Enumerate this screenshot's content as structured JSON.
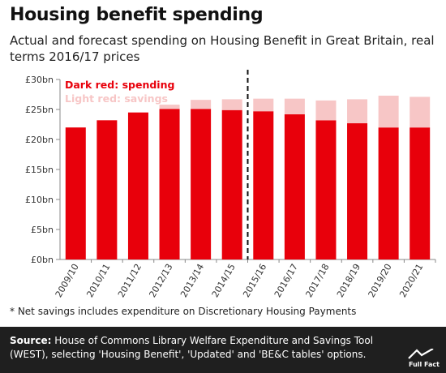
{
  "header": {
    "title": "Housing benefit spending",
    "subtitle": "Actual and forecast spending on Housing Benefit in Great Britain, real terms 2016/17 prices"
  },
  "chart_data": {
    "type": "bar",
    "stacked": true,
    "categories": [
      "2009/10",
      "2010/11",
      "2011/12",
      "2012/13",
      "2013/14",
      "2014/15",
      "2015/16",
      "2016/17",
      "2017/18",
      "2018/19",
      "2019/20",
      "2020/21"
    ],
    "series": [
      {
        "name": "Dark red: spending",
        "color": "#e8000b",
        "values": [
          22.0,
          23.2,
          24.5,
          25.1,
          25.1,
          24.9,
          24.7,
          24.2,
          23.2,
          22.7,
          22.0,
          22.0
        ]
      },
      {
        "name": "Light red: savings",
        "color": "#f7c6c6",
        "values": [
          0.0,
          0.0,
          0.0,
          0.7,
          1.5,
          1.8,
          2.1,
          2.6,
          3.3,
          4.0,
          5.3,
          5.1
        ]
      }
    ],
    "ylim": [
      0,
      30
    ],
    "yticks": [
      0,
      5,
      10,
      15,
      20,
      25,
      30
    ],
    "ytick_labels": [
      "£0bn",
      "£5bn",
      "£10bn",
      "£15bn",
      "£20bn",
      "£25bn",
      "£30bn"
    ],
    "grid": false,
    "legend": "top-left",
    "forecast_divider_after": "2014/15"
  },
  "note": "* Net savings includes expenditure on Discretionary Housing Payments",
  "source": {
    "label": "Source:",
    "text": "House of Commons Library Welfare Expenditure and Savings Tool (WEST), selecting 'Housing Benefit', 'Updated' and 'BE&C tables' options."
  },
  "logo": {
    "text": "Full Fact"
  },
  "colors": {
    "spending": "#e8000b",
    "savings": "#f7c6c6",
    "footer": "#1f1f1f"
  }
}
